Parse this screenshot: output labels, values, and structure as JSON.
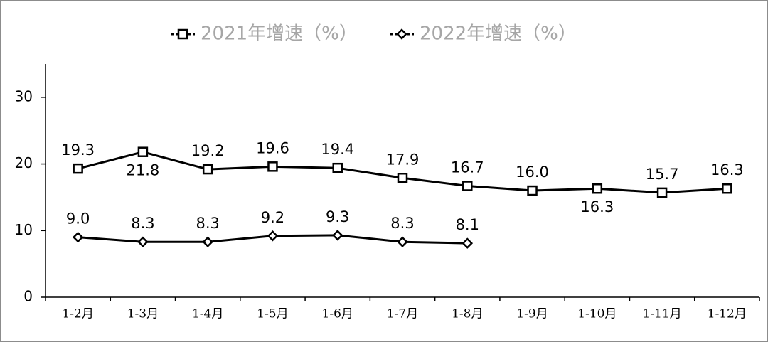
{
  "chart_data": {
    "type": "line",
    "categories": [
      "1-2月",
      "1-3月",
      "1-4月",
      "1-5月",
      "1-6月",
      "1-7月",
      "1-8月",
      "1-9月",
      "1-10月",
      "1-11月",
      "1-12月"
    ],
    "series": [
      {
        "name": "2021年增速（%）",
        "color": "#000000",
        "marker": "square",
        "values": [
          19.3,
          21.8,
          19.2,
          19.6,
          19.4,
          17.9,
          16.7,
          16.0,
          16.3,
          15.7,
          16.3
        ],
        "value_labels": [
          "19.3",
          "21.8",
          "19.2",
          "19.6",
          "19.4",
          "17.9",
          "16.7",
          "16.0",
          "16.3",
          "15.7",
          "16.3"
        ]
      },
      {
        "name": "2022年增速（%）",
        "color": "#000000",
        "marker": "diamond",
        "values": [
          9.0,
          8.3,
          8.3,
          9.2,
          9.3,
          8.3,
          8.1,
          null,
          null,
          null,
          null
        ],
        "value_labels": [
          "9.0",
          "8.3",
          "8.3",
          "9.2",
          "9.3",
          "8.3",
          "8.1",
          null,
          null,
          null,
          null
        ]
      }
    ],
    "ylim": [
      0,
      35
    ],
    "yticks": [
      0,
      10,
      20,
      30
    ],
    "legend": "top"
  }
}
